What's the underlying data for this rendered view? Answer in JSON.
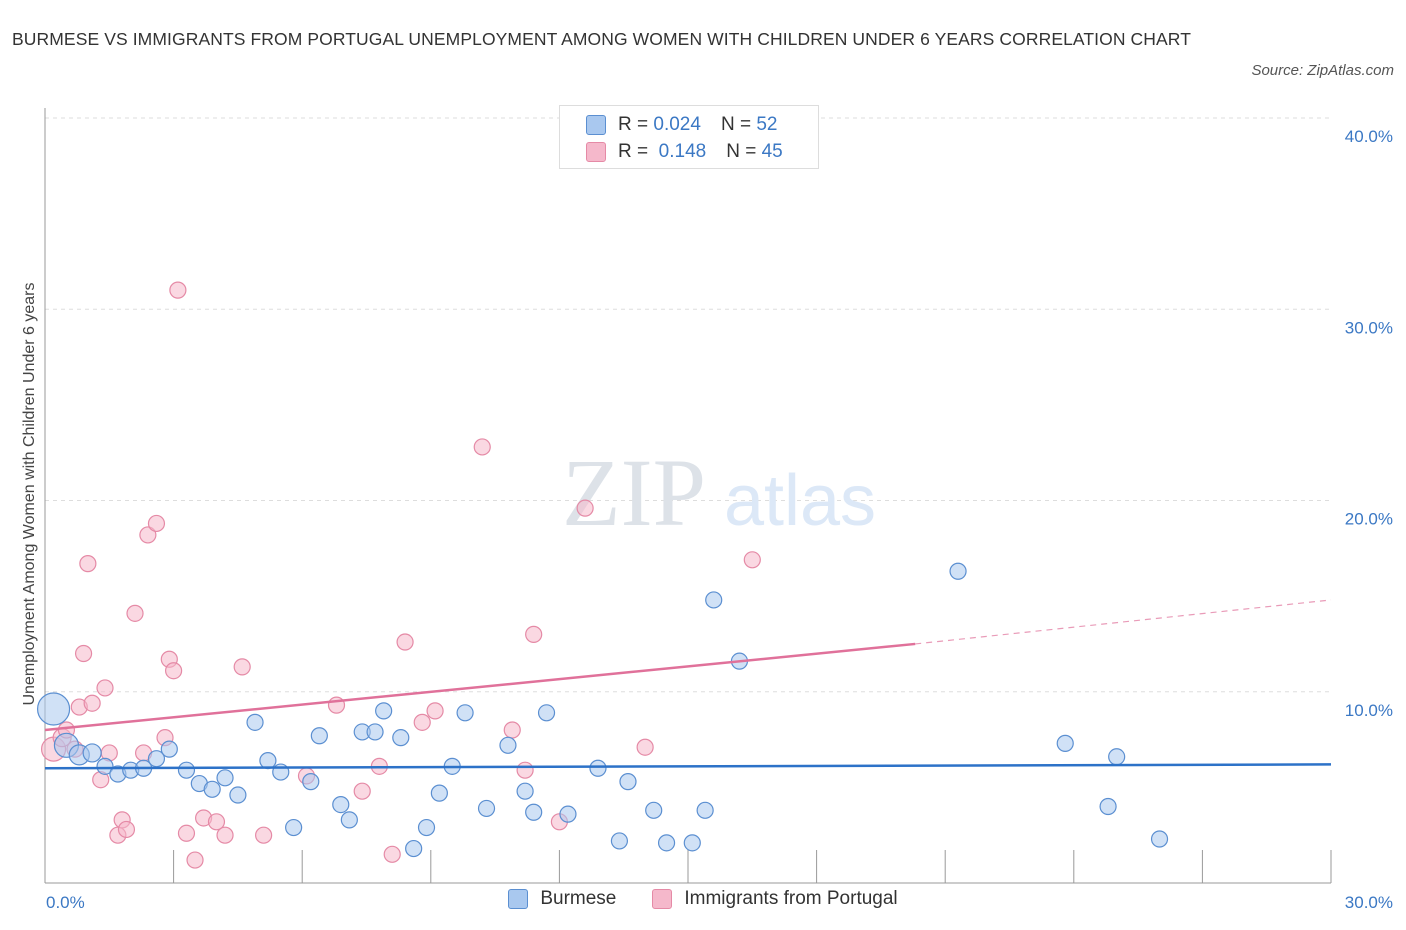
{
  "header": {
    "title": "BURMESE VS IMMIGRANTS FROM PORTUGAL UNEMPLOYMENT AMONG WOMEN WITH CHILDREN UNDER 6 YEARS CORRELATION CHART",
    "source": "Source: ZipAtlas.com"
  },
  "colors": {
    "burmese_fill": "#a9c8ef",
    "burmese_stroke": "#5b8fd1",
    "burmese_line": "#2d72c8",
    "portugal_fill": "#f5b8cb",
    "portugal_stroke": "#e58aa6",
    "portugal_line": "#e0719a",
    "tick_text": "#3b78c4",
    "grid": "#dddddd"
  },
  "watermark": {
    "zip": "ZIP",
    "atlas": "atlas"
  },
  "legend_top": {
    "rows": [
      {
        "r_label": "R =",
        "r_value": "0.024",
        "n_label": "N =",
        "n_value": "52"
      },
      {
        "r_label": "R =",
        "r_value": "0.148",
        "n_label": "N =",
        "n_value": "45"
      }
    ]
  },
  "legend_bottom": {
    "items": [
      "Burmese",
      "Immigrants from Portugal"
    ]
  },
  "chart_data": {
    "type": "scatter",
    "xlabel": "",
    "ylabel": "Unemployment Among Women with Children Under 6 years",
    "xlim": [
      0,
      30
    ],
    "ylim": [
      0,
      40
    ],
    "x_tick_labels": [
      "0.0%",
      "30.0%"
    ],
    "y_ticks": [
      10,
      20,
      30,
      40
    ],
    "y_tick_labels": [
      "10.0%",
      "20.0%",
      "30.0%",
      "40.0%"
    ],
    "grid": true,
    "legend_placement": "top-center and bottom",
    "series": [
      {
        "name": "Burmese",
        "r": 0.024,
        "n": 52,
        "trend": {
          "x": [
            0,
            30
          ],
          "y": [
            6.0,
            6.2
          ]
        },
        "points": [
          [
            0.2,
            9.1,
            16
          ],
          [
            0.5,
            7.2,
            12
          ],
          [
            0.8,
            6.7,
            10
          ],
          [
            1.1,
            6.8,
            9
          ],
          [
            1.4,
            6.1,
            8
          ],
          [
            1.7,
            5.7,
            8
          ],
          [
            2.0,
            5.9,
            8
          ],
          [
            2.3,
            6.0,
            8
          ],
          [
            2.6,
            6.5,
            8
          ],
          [
            2.9,
            7.0,
            8
          ],
          [
            3.3,
            5.9,
            8
          ],
          [
            3.6,
            5.2,
            8
          ],
          [
            3.9,
            4.9,
            8
          ],
          [
            4.2,
            5.5,
            8
          ],
          [
            4.5,
            4.6,
            8
          ],
          [
            4.9,
            8.4,
            8
          ],
          [
            5.2,
            6.4,
            8
          ],
          [
            5.5,
            5.8,
            8
          ],
          [
            5.8,
            2.9,
            8
          ],
          [
            6.2,
            5.3,
            8
          ],
          [
            6.4,
            7.7,
            8
          ],
          [
            6.9,
            4.1,
            8
          ],
          [
            7.1,
            3.3,
            8
          ],
          [
            7.4,
            7.9,
            8
          ],
          [
            7.7,
            7.9,
            8
          ],
          [
            7.9,
            9.0,
            8
          ],
          [
            8.3,
            7.6,
            8
          ],
          [
            8.6,
            1.8,
            8
          ],
          [
            8.9,
            2.9,
            8
          ],
          [
            9.2,
            4.7,
            8
          ],
          [
            9.5,
            6.1,
            8
          ],
          [
            9.8,
            8.9,
            8
          ],
          [
            10.3,
            3.9,
            8
          ],
          [
            10.8,
            7.2,
            8
          ],
          [
            11.2,
            4.8,
            8
          ],
          [
            11.4,
            3.7,
            8
          ],
          [
            11.7,
            8.9,
            8
          ],
          [
            12.2,
            3.6,
            8
          ],
          [
            12.9,
            6.0,
            8
          ],
          [
            13.4,
            2.2,
            8
          ],
          [
            13.6,
            5.3,
            8
          ],
          [
            14.2,
            3.8,
            8
          ],
          [
            14.5,
            2.1,
            8
          ],
          [
            15.1,
            2.1,
            8
          ],
          [
            15.4,
            3.8,
            8
          ],
          [
            15.6,
            14.8,
            8
          ],
          [
            16.2,
            11.6,
            8
          ],
          [
            21.3,
            16.3,
            8
          ],
          [
            23.8,
            7.3,
            8
          ],
          [
            24.8,
            4.0,
            8
          ],
          [
            25.0,
            6.6,
            8
          ],
          [
            26.0,
            2.3,
            8
          ]
        ]
      },
      {
        "name": "Immigrants from Portugal",
        "r": 0.148,
        "n": 45,
        "trend": {
          "x": [
            0,
            20.3
          ],
          "y": [
            8.0,
            12.5
          ],
          "dashed_to": {
            "x": 30,
            "y": 14.8
          }
        },
        "points": [
          [
            0.2,
            7.0,
            12
          ],
          [
            0.4,
            7.6,
            9
          ],
          [
            0.5,
            8.0,
            8
          ],
          [
            0.7,
            7.0,
            8
          ],
          [
            0.8,
            9.2,
            8
          ],
          [
            0.9,
            12.0,
            8
          ],
          [
            1.0,
            16.7,
            8
          ],
          [
            1.1,
            9.4,
            8
          ],
          [
            1.3,
            5.4,
            8
          ],
          [
            1.4,
            10.2,
            8
          ],
          [
            1.5,
            6.8,
            8
          ],
          [
            1.7,
            2.5,
            8
          ],
          [
            1.8,
            3.3,
            8
          ],
          [
            1.9,
            2.8,
            8
          ],
          [
            2.1,
            14.1,
            8
          ],
          [
            2.3,
            6.8,
            8
          ],
          [
            2.4,
            18.2,
            8
          ],
          [
            2.6,
            18.8,
            8
          ],
          [
            2.8,
            7.6,
            8
          ],
          [
            2.9,
            11.7,
            8
          ],
          [
            3.0,
            11.1,
            8
          ],
          [
            3.1,
            31.0,
            8
          ],
          [
            3.3,
            2.6,
            8
          ],
          [
            3.5,
            1.2,
            8
          ],
          [
            3.7,
            3.4,
            8
          ],
          [
            4.0,
            3.2,
            8
          ],
          [
            4.2,
            2.5,
            8
          ],
          [
            4.6,
            11.3,
            8
          ],
          [
            5.1,
            2.5,
            8
          ],
          [
            6.1,
            5.6,
            8
          ],
          [
            6.8,
            9.3,
            8
          ],
          [
            7.4,
            4.8,
            8
          ],
          [
            7.8,
            6.1,
            8
          ],
          [
            8.1,
            1.5,
            8
          ],
          [
            8.4,
            12.6,
            8
          ],
          [
            8.8,
            8.4,
            8
          ],
          [
            9.1,
            9.0,
            8
          ],
          [
            10.2,
            22.8,
            8
          ],
          [
            10.9,
            8.0,
            8
          ],
          [
            11.2,
            5.9,
            8
          ],
          [
            11.4,
            13.0,
            8
          ],
          [
            12.0,
            3.2,
            8
          ],
          [
            12.6,
            19.6,
            8
          ],
          [
            14.0,
            7.1,
            8
          ],
          [
            16.5,
            16.9,
            8
          ]
        ]
      }
    ]
  }
}
